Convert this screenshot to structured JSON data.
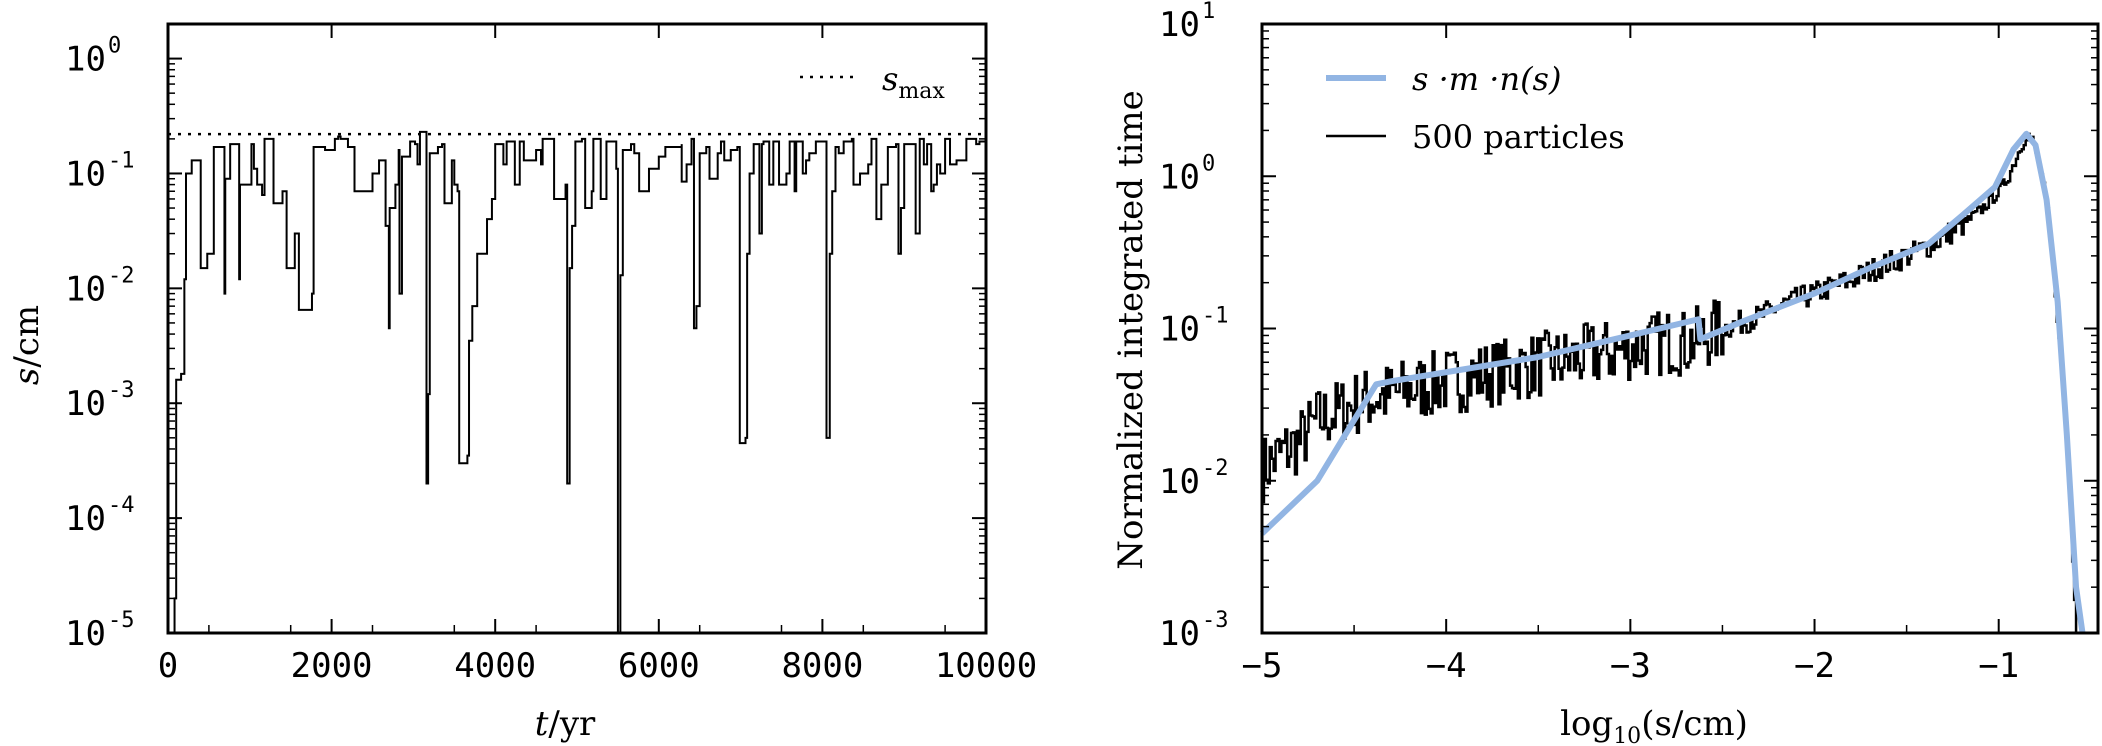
{
  "chart_data": [
    {
      "type": "line",
      "xlabel_var": "t",
      "xlabel_unit": "/yr",
      "ylabel_var": "s",
      "ylabel_unit": "/cm",
      "x_range": [
        0,
        10000
      ],
      "y_range": [
        1e-05,
        2
      ],
      "y_scale": "log",
      "x_ticks": [
        "0",
        "2000",
        "4000",
        "6000",
        "8000",
        "10000"
      ],
      "y_ticks": [
        {
          "base": "10",
          "exp": "0",
          "value": 1
        },
        {
          "base": "10",
          "exp": "-1",
          "value": 0.1
        },
        {
          "base": "10",
          "exp": "-2",
          "value": 0.01
        },
        {
          "base": "10",
          "exp": "-3",
          "value": 0.001
        },
        {
          "base": "10",
          "exp": "-4",
          "value": 0.0001
        },
        {
          "base": "10",
          "exp": "-5",
          "value": 1e-05
        }
      ],
      "legend": {
        "placement": "top-right",
        "label_base": "s",
        "label_sub": "max"
      },
      "s_max": 0.22,
      "series": [
        {
          "style": "solid black step",
          "points": [
            [
              0,
              1e-05
            ],
            [
              80,
              2e-05
            ],
            [
              100,
              0.0016
            ],
            [
              160,
              0.0018
            ],
            [
              200,
              0.012
            ],
            [
              220,
              0.1
            ],
            [
              290,
              0.13
            ],
            [
              400,
              0.015
            ],
            [
              480,
              0.02
            ],
            [
              560,
              0.17
            ],
            [
              660,
              0.17
            ],
            [
              690,
              0.009
            ],
            [
              700,
              0.09
            ],
            [
              760,
              0.18
            ],
            [
              840,
              0.18
            ],
            [
              870,
              0.012
            ],
            [
              880,
              0.08
            ],
            [
              970,
              0.08
            ],
            [
              1020,
              0.18
            ],
            [
              1050,
              0.11
            ],
            [
              1090,
              0.08
            ],
            [
              1150,
              0.065
            ],
            [
              1180,
              0.2
            ],
            [
              1290,
              0.18
            ],
            [
              1290,
              0.055
            ],
            [
              1400,
              0.07
            ],
            [
              1450,
              0.015
            ],
            [
              1550,
              0.03
            ],
            [
              1600,
              0.0065
            ],
            [
              1760,
              0.009
            ],
            [
              1780,
              0.17
            ],
            [
              1900,
              0.17
            ],
            [
              1920,
              0.16
            ],
            [
              2040,
              0.2
            ],
            [
              2080,
              0.21
            ],
            [
              2110,
              0.2
            ],
            [
              2200,
              0.17
            ],
            [
              2280,
              0.17
            ],
            [
              2280,
              0.07
            ],
            [
              2500,
              0.1
            ],
            [
              2580,
              0.13
            ],
            [
              2640,
              0.13
            ],
            [
              2660,
              0.035
            ],
            [
              2700,
              0.0045
            ],
            [
              2710,
              0.05
            ],
            [
              2780,
              0.08
            ],
            [
              2820,
              0.16
            ],
            [
              2830,
              0.009
            ],
            [
              2860,
              0.14
            ],
            [
              2960,
              0.19
            ],
            [
              3020,
              0.18
            ],
            [
              3050,
              0.12
            ],
            [
              3080,
              0.23
            ],
            [
              3140,
              0.23
            ],
            [
              3160,
              0.0002
            ],
            [
              3180,
              0.0012
            ],
            [
              3200,
              0.15
            ],
            [
              3300,
              0.17
            ],
            [
              3350,
              0.18
            ],
            [
              3380,
              0.055
            ],
            [
              3470,
              0.13
            ],
            [
              3500,
              0.08
            ],
            [
              3540,
              0.07
            ],
            [
              3560,
              0.0003
            ],
            [
              3660,
              0.00035
            ],
            [
              3680,
              0.0035
            ],
            [
              3720,
              0.007
            ],
            [
              3780,
              0.02
            ],
            [
              3900,
              0.04
            ],
            [
              3960,
              0.06
            ],
            [
              4000,
              0.18
            ],
            [
              4100,
              0.12
            ],
            [
              4140,
              0.19
            ],
            [
              4240,
              0.08
            ],
            [
              4300,
              0.19
            ],
            [
              4350,
              0.13
            ],
            [
              4500,
              0.16
            ],
            [
              4560,
              0.12
            ],
            [
              4580,
              0.2
            ],
            [
              4720,
              0.19
            ],
            [
              4720,
              0.06
            ],
            [
              4860,
              0.08
            ],
            [
              4880,
              0.0002
            ],
            [
              4910,
              0.015
            ],
            [
              4940,
              0.035
            ],
            [
              4980,
              0.19
            ],
            [
              5060,
              0.2
            ],
            [
              5100,
              0.05
            ],
            [
              5180,
              0.07
            ],
            [
              5200,
              0.2
            ],
            [
              5290,
              0.06
            ],
            [
              5360,
              0.19
            ],
            [
              5420,
              0.19
            ],
            [
              5480,
              0.11
            ],
            [
              5500,
              1e-05
            ],
            [
              5530,
              0.013
            ],
            [
              5560,
              0.16
            ],
            [
              5660,
              0.18
            ],
            [
              5700,
              0.15
            ],
            [
              5760,
              0.07
            ],
            [
              5880,
              0.11
            ],
            [
              6000,
              0.14
            ],
            [
              6080,
              0.17
            ],
            [
              6280,
              0.18
            ],
            [
              6280,
              0.085
            ],
            [
              6340,
              0.12
            ],
            [
              6400,
              0.2
            ],
            [
              6430,
              0.0045
            ],
            [
              6460,
              0.007
            ],
            [
              6500,
              0.15
            ],
            [
              6580,
              0.17
            ],
            [
              6620,
              0.09
            ],
            [
              6720,
              0.15
            ],
            [
              6760,
              0.19
            ],
            [
              6800,
              0.13
            ],
            [
              6880,
              0.16
            ],
            [
              6960,
              0.17
            ],
            [
              6990,
              0.00045
            ],
            [
              7060,
              0.0005
            ],
            [
              7080,
              0.02
            ],
            [
              7110,
              0.1
            ],
            [
              7160,
              0.18
            ],
            [
              7210,
              0.18
            ],
            [
              7230,
              0.03
            ],
            [
              7260,
              0.18
            ],
            [
              7280,
              0.19
            ],
            [
              7350,
              0.08
            ],
            [
              7400,
              0.19
            ],
            [
              7470,
              0.08
            ],
            [
              7560,
              0.1
            ],
            [
              7600,
              0.19
            ],
            [
              7660,
              0.07
            ],
            [
              7680,
              0.19
            ],
            [
              7760,
              0.1
            ],
            [
              7800,
              0.13
            ],
            [
              7840,
              0.15
            ],
            [
              7920,
              0.19
            ],
            [
              7990,
              0.19
            ],
            [
              8050,
              0.0005
            ],
            [
              8090,
              0.02
            ],
            [
              8120,
              0.07
            ],
            [
              8160,
              0.17
            ],
            [
              8200,
              0.15
            ],
            [
              8260,
              0.19
            ],
            [
              8360,
              0.2
            ],
            [
              8380,
              0.08
            ],
            [
              8460,
              0.1
            ],
            [
              8560,
              0.12
            ],
            [
              8600,
              0.2
            ],
            [
              8640,
              0.2
            ],
            [
              8660,
              0.04
            ],
            [
              8720,
              0.08
            ],
            [
              8800,
              0.17
            ],
            [
              8900,
              0.18
            ],
            [
              8930,
              0.02
            ],
            [
              8960,
              0.05
            ],
            [
              9000,
              0.18
            ],
            [
              9100,
              0.18
            ],
            [
              9140,
              0.03
            ],
            [
              9190,
              0.2
            ],
            [
              9240,
              0.12
            ],
            [
              9280,
              0.18
            ],
            [
              9330,
              0.07
            ],
            [
              9360,
              0.08
            ],
            [
              9400,
              0.12
            ],
            [
              9440,
              0.1
            ],
            [
              9500,
              0.2
            ],
            [
              9560,
              0.12
            ],
            [
              9640,
              0.13
            ],
            [
              9760,
              0.2
            ],
            [
              9880,
              0.18
            ],
            [
              9920,
              0.19
            ],
            [
              10000,
              0.19
            ]
          ]
        }
      ]
    },
    {
      "type": "line",
      "xlabel_func": "log",
      "xlabel_sub": "10",
      "xlabel_arg": "(s/cm)",
      "ylabel": "Normalized integrated time",
      "x_range": [
        -5,
        -0.45
      ],
      "y_range": [
        0.001,
        10
      ],
      "y_scale": "log",
      "x_ticks": [
        "−5",
        "−4",
        "−3",
        "−2",
        "−1"
      ],
      "x_tick_values": [
        -5,
        -4,
        -3,
        -2,
        -1
      ],
      "y_ticks": [
        {
          "base": "10",
          "exp": "1",
          "value": 10
        },
        {
          "base": "10",
          "exp": "0",
          "value": 1
        },
        {
          "base": "10",
          "exp": "-1",
          "value": 0.1
        },
        {
          "base": "10",
          "exp": "-2",
          "value": 0.01
        },
        {
          "base": "10",
          "exp": "-3",
          "value": 0.001
        }
      ],
      "legend": {
        "placement": "top-left",
        "entries": [
          {
            "label": "s ·m ·n(s)",
            "color": "#92b5e3"
          },
          {
            "label": "500 particles",
            "color": "#000000"
          }
        ]
      },
      "series": [
        {
          "name": "s ·m ·n(s)",
          "color": "#92b5e3",
          "points": [
            [
              -5.0,
              0.0045
            ],
            [
              -4.7,
              0.01
            ],
            [
              -4.5,
              0.025
            ],
            [
              -4.38,
              0.043
            ],
            [
              -4.3,
              0.045
            ],
            [
              -3.5,
              0.065
            ],
            [
              -3.0,
              0.09
            ],
            [
              -2.63,
              0.115
            ],
            [
              -2.62,
              0.085
            ],
            [
              -2.4,
              0.11
            ],
            [
              -2.0,
              0.17
            ],
            [
              -1.7,
              0.25
            ],
            [
              -1.38,
              0.36
            ],
            [
              -1.2,
              0.55
            ],
            [
              -1.02,
              0.85
            ],
            [
              -0.92,
              1.5
            ],
            [
              -0.85,
              1.9
            ],
            [
              -0.8,
              1.6
            ],
            [
              -0.74,
              0.7
            ],
            [
              -0.68,
              0.15
            ],
            [
              -0.63,
              0.02
            ],
            [
              -0.58,
              0.002
            ],
            [
              -0.545,
              0.0009
            ]
          ]
        },
        {
          "name": "500 particles",
          "color": "#000000",
          "points": [
            [
              -5.0,
              0.012
            ],
            [
              -4.9,
              0.015
            ],
            [
              -4.8,
              0.018
            ],
            [
              -4.7,
              0.025
            ],
            [
              -4.6,
              0.028
            ],
            [
              -4.5,
              0.032
            ],
            [
              -4.4,
              0.035
            ],
            [
              -4.3,
              0.037
            ],
            [
              -4.2,
              0.04
            ],
            [
              -4.1,
              0.042
            ],
            [
              -4.0,
              0.045
            ],
            [
              -3.9,
              0.047
            ],
            [
              -3.8,
              0.05
            ],
            [
              -3.7,
              0.052
            ],
            [
              -3.6,
              0.055
            ],
            [
              -3.5,
              0.058
            ],
            [
              -3.4,
              0.06
            ],
            [
              -3.3,
              0.063
            ],
            [
              -3.2,
              0.067
            ],
            [
              -3.1,
              0.07
            ],
            [
              -3.0,
              0.075
            ],
            [
              -2.9,
              0.078
            ],
            [
              -2.8,
              0.082
            ],
            [
              -2.7,
              0.08
            ],
            [
              -2.6,
              0.088
            ],
            [
              -2.5,
              0.1
            ],
            [
              -2.4,
              0.11
            ],
            [
              -2.3,
              0.12
            ],
            [
              -2.2,
              0.14
            ],
            [
              -2.1,
              0.155
            ],
            [
              -2.0,
              0.17
            ],
            [
              -1.9,
              0.19
            ],
            [
              -1.8,
              0.21
            ],
            [
              -1.7,
              0.24
            ],
            [
              -1.6,
              0.27
            ],
            [
              -1.5,
              0.3
            ],
            [
              -1.4,
              0.34
            ],
            [
              -1.3,
              0.4
            ],
            [
              -1.2,
              0.48
            ],
            [
              -1.1,
              0.6
            ],
            [
              -1.0,
              0.8
            ],
            [
              -0.95,
              1.0
            ],
            [
              -0.9,
              1.4
            ],
            [
              -0.85,
              1.9
            ],
            [
              -0.82,
              1.7
            ],
            [
              -0.78,
              1.2
            ],
            [
              -0.74,
              0.6
            ],
            [
              -0.7,
              0.2
            ],
            [
              -0.66,
              0.05
            ],
            [
              -0.62,
              0.01
            ],
            [
              -0.6,
              0.003
            ],
            [
              -0.58,
              0.001
            ]
          ]
        }
      ]
    }
  ]
}
